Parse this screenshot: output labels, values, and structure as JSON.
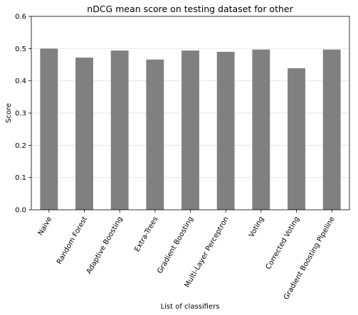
{
  "chart_data": {
    "type": "bar",
    "title": "nDCG mean score on testing dataset for other",
    "xlabel": "List of classifiers",
    "ylabel": "Score",
    "ylim": [
      0,
      0.6
    ],
    "yticks": [
      "0.0",
      "0.1",
      "0.2",
      "0.3",
      "0.4",
      "0.5",
      "0.6"
    ],
    "grid": "horizontal",
    "bar_color": "#808080",
    "categories": [
      "Naive",
      "Random Forest",
      "Adaptive Boosting",
      "Extra-Trees",
      "Gradient Boosting",
      "Multi-Layer Perceptron",
      "Voting",
      "Corrected Voting",
      "Gradient Boosting Pipeline"
    ],
    "values": [
      0.5,
      0.472,
      0.494,
      0.466,
      0.494,
      0.49,
      0.497,
      0.439,
      0.497
    ]
  }
}
